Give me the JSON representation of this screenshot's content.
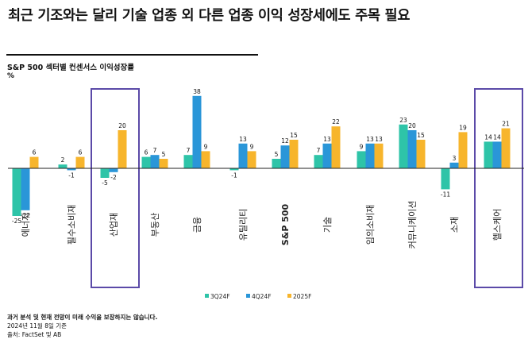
{
  "header": {
    "headline": "최근 기조와는 달리 기술 업종 외 다른 업종 이익 성장세에도 주목 필요"
  },
  "chart_data": {
    "type": "bar",
    "title": "S&P 500 섹터별 컨센서스 이익성장률",
    "ylabel": "%",
    "categories": [
      "에너지",
      "필수소비재",
      "산업재",
      "부동산",
      "금융",
      "유틸리티",
      "S&P 500",
      "기술",
      "임의소비재",
      "커뮤니케이션",
      "소재",
      "헬스케어"
    ],
    "series": [
      {
        "name": "3Q24F",
        "color": "#2ec4a8",
        "values": [
          -25,
          2,
          -5,
          6,
          7,
          -1,
          5,
          7,
          9,
          23,
          -11,
          14
        ]
      },
      {
        "name": "4Q24F",
        "color": "#2a96d8",
        "values": [
          -22,
          -1,
          -2,
          7,
          38,
          13,
          12,
          13,
          13,
          20,
          3,
          14
        ]
      },
      {
        "name": "2025F",
        "color": "#f7b52c",
        "values": [
          6,
          6,
          20,
          5,
          9,
          9,
          15,
          22,
          13,
          15,
          19,
          21
        ]
      }
    ],
    "highlighted_categories": [
      "산업재",
      "헬스케어"
    ],
    "highlight_color": "#5b4aa8",
    "bold_category": "S&P 500",
    "legend_position": "bottom-center",
    "grid": false
  },
  "footer": {
    "disclaimer": "과거 분석 및 현재 전망이 미래 수익을 보장하지는 않습니다.",
    "date": "2024년 11월 8일 기준",
    "source": "출처: FactSet 및 AB"
  }
}
